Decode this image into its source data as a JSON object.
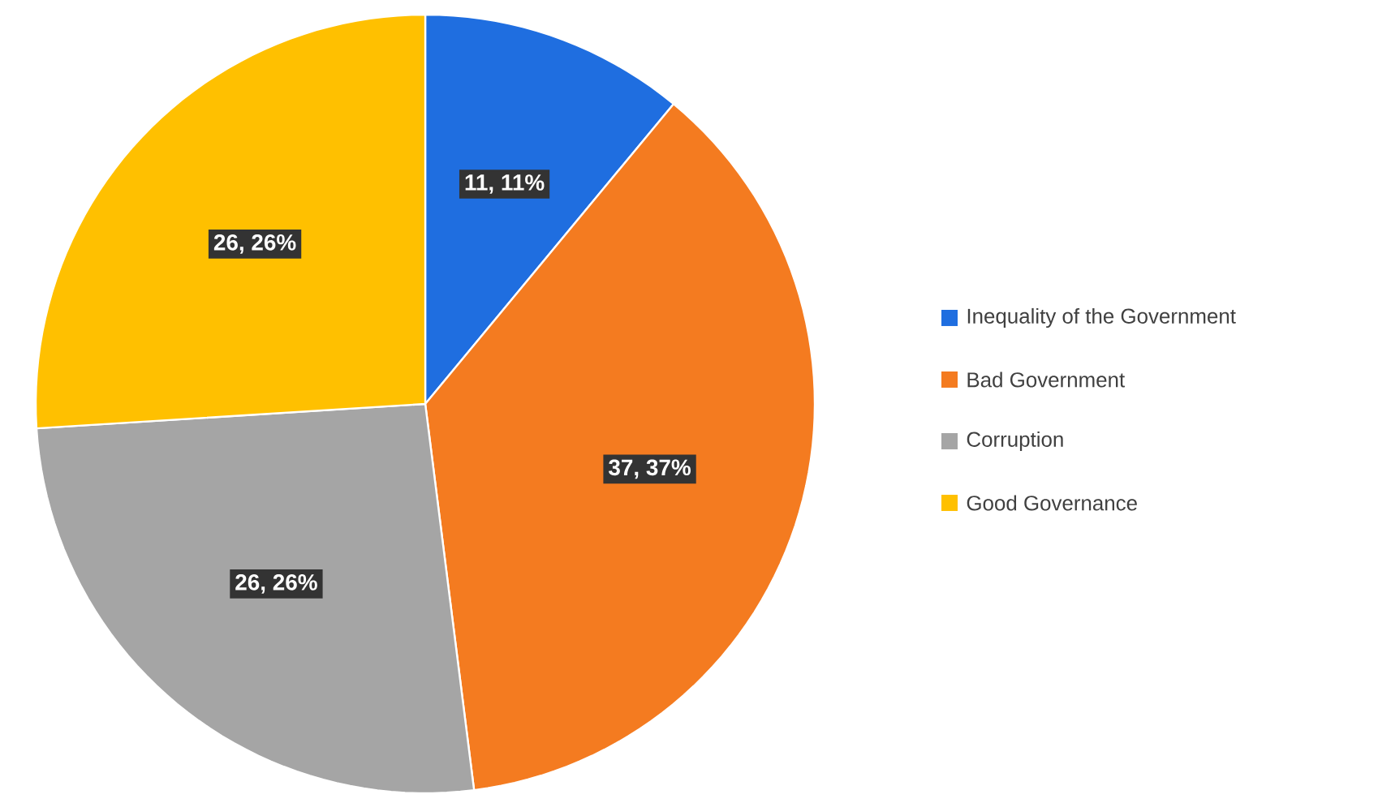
{
  "chart_data": {
    "type": "pie",
    "categories": [
      "Inequality of the Government",
      "Bad Government",
      "Corruption",
      "Good Governance"
    ],
    "values": [
      11,
      37,
      26,
      26
    ],
    "colors": [
      "#1f6ee0",
      "#f47b20",
      "#a5a5a5",
      "#ffc000"
    ],
    "value_labels": [
      "11, 11%",
      "37, 37%",
      "26, 26%",
      "26, 26%"
    ],
    "legend": "right"
  }
}
